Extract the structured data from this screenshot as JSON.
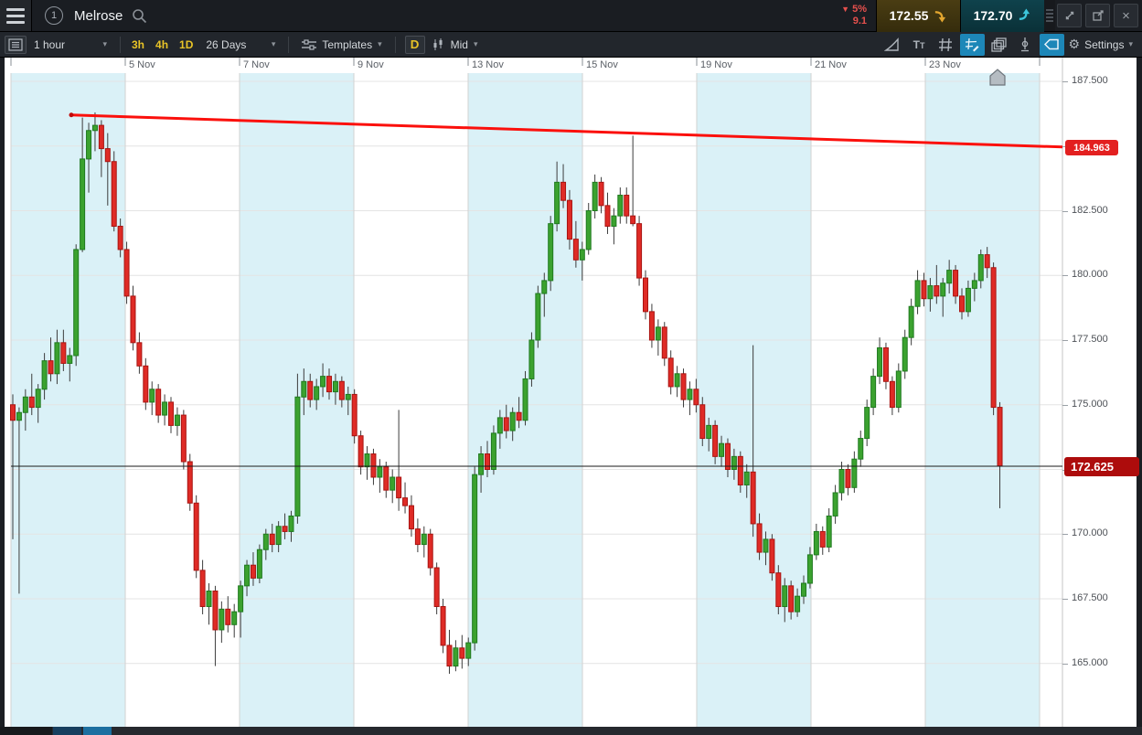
{
  "topbar": {
    "window_number": "1",
    "instrument": "Melrose",
    "change_direction": "down",
    "change_percent": "5%",
    "change_value": "9.1",
    "sell_price": "172.55",
    "buy_price": "172.70",
    "close_glyph": "×"
  },
  "toolbar": {
    "interval": "1 hour",
    "quick_intervals": [
      "3h",
      "4h",
      "1D"
    ],
    "range": "26 Days",
    "templates_label": "Templates",
    "period_button": "D",
    "price_mode": "Mid",
    "settings_label": "Settings",
    "caret": "▾"
  },
  "chart_data": {
    "type": "candlestick",
    "instrument": "Melrose",
    "interval": "1 hour",
    "range": "26 Days",
    "grid": true,
    "x_labels": [
      "5 Nov",
      "7 Nov",
      "9 Nov",
      "13 Nov",
      "15 Nov",
      "19 Nov",
      "21 Nov",
      "23 Nov"
    ],
    "y_ticks": [
      {
        "label": "187.500",
        "price": 187.5
      },
      {
        "label": "185.000",
        "price": 185.0
      },
      {
        "label": "182.500",
        "price": 182.5
      },
      {
        "label": "180.000",
        "price": 180.0
      },
      {
        "label": "177.500",
        "price": 177.5
      },
      {
        "label": "175.000",
        "price": 175.0
      },
      {
        "label": "172.500",
        "price": 172.5
      },
      {
        "label": "170.000",
        "price": 170.0
      },
      {
        "label": "167.500",
        "price": 167.5
      },
      {
        "label": "165.000",
        "price": 165.0
      }
    ],
    "ylim": [
      163.0,
      188.4
    ],
    "current_price": 172.625,
    "current_price_label": "172.625",
    "trendline": {
      "label": "184.963",
      "start_price": 186.2,
      "end_price": 184.963
    },
    "up_color": "#3ba22f",
    "up_border": "#1f7a1f",
    "down_color": "#df2b26",
    "down_border": "#a81411",
    "wick_color": "#3c3c3c",
    "band_color": "#daf1f7",
    "trendline_color": "#fb100c",
    "candles": [
      [
        175.0,
        175.4,
        169.8,
        174.4
      ],
      [
        174.4,
        174.9,
        167.7,
        174.7
      ],
      [
        174.7,
        175.6,
        174.0,
        175.3
      ],
      [
        175.3,
        176.2,
        174.6,
        174.9
      ],
      [
        174.9,
        175.8,
        174.3,
        175.6
      ],
      [
        175.6,
        177.0,
        175.2,
        176.7
      ],
      [
        176.7,
        177.6,
        175.9,
        176.2
      ],
      [
        176.2,
        177.9,
        175.8,
        177.4
      ],
      [
        177.4,
        177.9,
        176.3,
        176.6
      ],
      [
        176.6,
        177.2,
        175.9,
        176.9
      ],
      [
        176.9,
        181.2,
        176.5,
        181.0
      ],
      [
        181.0,
        186.1,
        180.9,
        184.5
      ],
      [
        184.5,
        185.9,
        183.2,
        185.6
      ],
      [
        185.6,
        186.3,
        184.8,
        185.8
      ],
      [
        185.8,
        186.0,
        183.8,
        184.9
      ],
      [
        184.9,
        185.5,
        182.7,
        184.4
      ],
      [
        184.4,
        184.8,
        181.7,
        181.9
      ],
      [
        181.9,
        182.2,
        180.7,
        181.0
      ],
      [
        181.0,
        181.3,
        178.9,
        179.2
      ],
      [
        179.2,
        179.6,
        177.1,
        177.4
      ],
      [
        177.4,
        177.8,
        176.2,
        176.5
      ],
      [
        176.5,
        176.8,
        174.8,
        175.1
      ],
      [
        175.1,
        175.9,
        174.6,
        175.6
      ],
      [
        175.6,
        175.8,
        174.3,
        174.6
      ],
      [
        174.6,
        175.4,
        174.2,
        175.1
      ],
      [
        175.1,
        175.3,
        173.9,
        174.2
      ],
      [
        174.2,
        174.9,
        173.8,
        174.6
      ],
      [
        174.6,
        174.8,
        172.5,
        172.8
      ],
      [
        172.8,
        173.1,
        170.9,
        171.2
      ],
      [
        171.2,
        171.5,
        168.3,
        168.6
      ],
      [
        168.6,
        169.0,
        166.9,
        167.2
      ],
      [
        167.2,
        168.1,
        166.5,
        167.8
      ],
      [
        167.8,
        168.0,
        164.9,
        166.3
      ],
      [
        166.3,
        167.4,
        165.8,
        167.1
      ],
      [
        167.1,
        167.6,
        166.2,
        166.5
      ],
      [
        166.5,
        167.3,
        166.0,
        167.0
      ],
      [
        167.0,
        168.2,
        166.0,
        168.0
      ],
      [
        168.0,
        169.0,
        167.6,
        168.8
      ],
      [
        168.8,
        169.3,
        168.0,
        168.3
      ],
      [
        168.3,
        169.6,
        168.1,
        169.4
      ],
      [
        169.4,
        170.2,
        169.0,
        170.0
      ],
      [
        170.0,
        170.4,
        169.3,
        169.6
      ],
      [
        169.6,
        170.5,
        169.3,
        170.3
      ],
      [
        170.3,
        170.8,
        169.8,
        170.1
      ],
      [
        170.1,
        170.9,
        169.7,
        170.7
      ],
      [
        170.7,
        176.2,
        170.4,
        175.3
      ],
      [
        175.3,
        176.4,
        174.6,
        175.9
      ],
      [
        175.9,
        176.2,
        174.9,
        175.2
      ],
      [
        175.2,
        176.0,
        174.8,
        175.7
      ],
      [
        175.7,
        176.6,
        175.3,
        176.1
      ],
      [
        176.1,
        176.4,
        175.2,
        175.5
      ],
      [
        175.5,
        176.2,
        175.0,
        175.9
      ],
      [
        175.9,
        176.1,
        174.9,
        175.2
      ],
      [
        175.2,
        175.7,
        174.6,
        175.4
      ],
      [
        175.4,
        175.6,
        173.5,
        173.8
      ],
      [
        173.8,
        174.0,
        172.3,
        172.6
      ],
      [
        172.6,
        173.4,
        172.1,
        173.1
      ],
      [
        173.1,
        173.3,
        171.9,
        172.2
      ],
      [
        172.2,
        172.9,
        171.6,
        172.6
      ],
      [
        172.6,
        172.8,
        171.4,
        171.7
      ],
      [
        171.7,
        172.5,
        171.2,
        172.2
      ],
      [
        172.2,
        174.8,
        170.9,
        171.4
      ],
      [
        171.4,
        172.0,
        170.8,
        171.1
      ],
      [
        171.1,
        171.5,
        169.9,
        170.2
      ],
      [
        170.2,
        170.6,
        169.3,
        169.6
      ],
      [
        169.6,
        170.3,
        169.1,
        170.0
      ],
      [
        170.0,
        170.2,
        168.4,
        168.7
      ],
      [
        168.7,
        168.9,
        166.9,
        167.2
      ],
      [
        167.2,
        167.5,
        165.4,
        165.7
      ],
      [
        165.7,
        166.3,
        164.6,
        164.9
      ],
      [
        164.9,
        165.9,
        164.7,
        165.6
      ],
      [
        165.6,
        166.1,
        164.8,
        165.2
      ],
      [
        165.2,
        166.0,
        164.9,
        165.8
      ],
      [
        165.8,
        172.6,
        165.5,
        172.3
      ],
      [
        172.3,
        173.4,
        171.6,
        173.1
      ],
      [
        173.1,
        173.6,
        172.2,
        172.5
      ],
      [
        172.5,
        174.2,
        172.3,
        173.9
      ],
      [
        173.9,
        174.8,
        173.3,
        174.5
      ],
      [
        174.5,
        175.0,
        173.7,
        174.0
      ],
      [
        174.0,
        174.9,
        173.6,
        174.7
      ],
      [
        174.7,
        175.3,
        174.1,
        174.4
      ],
      [
        174.4,
        176.3,
        174.2,
        176.0
      ],
      [
        176.0,
        177.8,
        175.7,
        177.5
      ],
      [
        177.5,
        179.6,
        177.2,
        179.3
      ],
      [
        179.3,
        180.1,
        178.4,
        179.8
      ],
      [
        179.8,
        182.3,
        179.4,
        182.0
      ],
      [
        182.0,
        184.4,
        181.7,
        183.6
      ],
      [
        183.6,
        184.3,
        182.6,
        182.9
      ],
      [
        182.9,
        183.3,
        181.0,
        181.4
      ],
      [
        181.4,
        182.1,
        180.3,
        180.6
      ],
      [
        180.6,
        181.3,
        179.8,
        181.0
      ],
      [
        181.0,
        182.8,
        180.8,
        182.5
      ],
      [
        182.5,
        183.9,
        182.2,
        183.6
      ],
      [
        183.6,
        183.8,
        182.4,
        182.7
      ],
      [
        182.7,
        183.2,
        181.6,
        181.9
      ],
      [
        181.9,
        182.6,
        181.2,
        182.3
      ],
      [
        182.3,
        183.4,
        182.0,
        183.1
      ],
      [
        183.1,
        183.4,
        182.0,
        182.3
      ],
      [
        182.3,
        185.4,
        181.9,
        182.0
      ],
      [
        182.0,
        182.3,
        179.6,
        179.9
      ],
      [
        179.9,
        180.2,
        178.3,
        178.6
      ],
      [
        178.6,
        178.9,
        177.2,
        177.5
      ],
      [
        177.5,
        178.3,
        176.9,
        178.0
      ],
      [
        178.0,
        178.2,
        176.5,
        176.8
      ],
      [
        176.8,
        177.1,
        175.4,
        175.7
      ],
      [
        175.7,
        176.5,
        175.3,
        176.2
      ],
      [
        176.2,
        176.4,
        174.9,
        175.2
      ],
      [
        175.2,
        175.9,
        174.6,
        175.6
      ],
      [
        175.6,
        176.0,
        174.7,
        175.0
      ],
      [
        175.0,
        175.3,
        173.4,
        173.7
      ],
      [
        173.7,
        174.5,
        173.2,
        174.2
      ],
      [
        174.2,
        174.4,
        172.7,
        173.0
      ],
      [
        173.0,
        173.8,
        172.6,
        173.5
      ],
      [
        173.5,
        173.7,
        172.2,
        172.5
      ],
      [
        172.5,
        173.3,
        172.1,
        173.0
      ],
      [
        173.0,
        173.2,
        171.6,
        171.9
      ],
      [
        171.9,
        172.7,
        171.4,
        172.4
      ],
      [
        172.4,
        177.3,
        169.9,
        170.4
      ],
      [
        170.4,
        170.8,
        169.0,
        169.3
      ],
      [
        169.3,
        170.1,
        168.8,
        169.8
      ],
      [
        169.8,
        170.0,
        168.2,
        168.5
      ],
      [
        168.5,
        168.8,
        166.9,
        167.2
      ],
      [
        167.2,
        168.3,
        166.6,
        168.0
      ],
      [
        168.0,
        168.2,
        166.7,
        167.0
      ],
      [
        167.0,
        167.9,
        166.8,
        167.6
      ],
      [
        167.6,
        168.4,
        167.3,
        168.1
      ],
      [
        168.1,
        169.5,
        167.9,
        169.2
      ],
      [
        169.2,
        170.4,
        169.0,
        170.1
      ],
      [
        170.1,
        170.3,
        169.2,
        169.5
      ],
      [
        169.5,
        171.0,
        169.3,
        170.7
      ],
      [
        170.7,
        171.9,
        170.4,
        171.6
      ],
      [
        171.6,
        172.8,
        171.3,
        172.5
      ],
      [
        172.5,
        172.7,
        171.5,
        171.8
      ],
      [
        171.8,
        173.2,
        171.6,
        172.9
      ],
      [
        172.9,
        174.0,
        172.6,
        173.7
      ],
      [
        173.7,
        175.2,
        173.4,
        174.9
      ],
      [
        174.9,
        176.4,
        174.6,
        176.1
      ],
      [
        176.1,
        177.6,
        175.8,
        177.2
      ],
      [
        177.2,
        177.4,
        175.6,
        175.9
      ],
      [
        175.9,
        176.1,
        174.6,
        174.9
      ],
      [
        174.9,
        176.6,
        174.7,
        176.3
      ],
      [
        176.3,
        177.9,
        176.0,
        177.6
      ],
      [
        177.6,
        179.1,
        177.3,
        178.8
      ],
      [
        178.8,
        180.2,
        178.5,
        179.8
      ],
      [
        179.8,
        180.1,
        178.8,
        179.1
      ],
      [
        179.1,
        179.9,
        178.6,
        179.6
      ],
      [
        179.6,
        180.4,
        178.9,
        179.2
      ],
      [
        179.2,
        179.9,
        178.4,
        179.7
      ],
      [
        179.7,
        180.6,
        179.3,
        180.2
      ],
      [
        180.2,
        180.4,
        178.9,
        179.2
      ],
      [
        179.2,
        179.5,
        178.3,
        178.6
      ],
      [
        178.6,
        179.8,
        178.4,
        179.5
      ],
      [
        179.5,
        180.1,
        179.0,
        179.8
      ],
      [
        179.8,
        181.0,
        179.5,
        180.8
      ],
      [
        180.8,
        181.1,
        179.9,
        180.3
      ],
      [
        180.3,
        180.5,
        174.6,
        174.9
      ],
      [
        174.9,
        175.1,
        171.0,
        172.63
      ]
    ]
  }
}
